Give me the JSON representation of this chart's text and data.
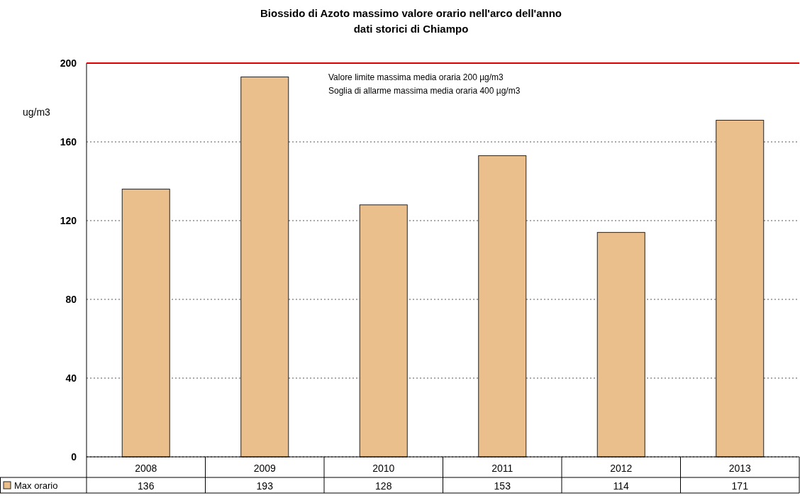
{
  "chart_data": {
    "type": "bar",
    "title": "Biossido di Azoto massimo valore orario nell'arco dell'anno\ndati storici di Chiampo",
    "ylabel": "ug/m3",
    "categories": [
      "2008",
      "2009",
      "2010",
      "2011",
      "2012",
      "2013"
    ],
    "series": [
      {
        "name": "Max orario",
        "color": "#ebbf8b",
        "values": [
          136,
          193,
          128,
          153,
          114,
          171
        ]
      }
    ],
    "ylim": [
      0,
      200
    ],
    "yticks": [
      0,
      40,
      80,
      120,
      160,
      200
    ],
    "grid": "y",
    "legend": "bottom left",
    "data_labels": true,
    "ref_lines": [
      {
        "axis": "y",
        "value": 200,
        "color": "#e00000"
      }
    ],
    "annotations": [
      "Valore limite massima media oraria 200 µg/m3",
      "Soglia di allarme massima media oraria 400 µg/m3"
    ]
  }
}
